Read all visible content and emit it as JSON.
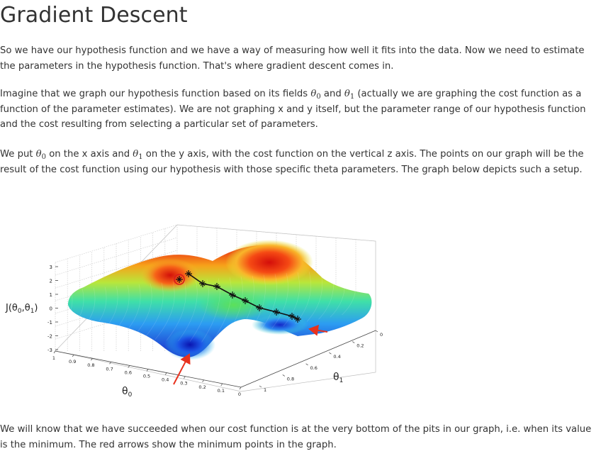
{
  "page": {
    "title": "Gradient Descent",
    "p1": "So we have our hypothesis function and we have a way of measuring how well it fits into the data. Now we need to estimate the parameters in the hypothesis function. That's where gradient descent comes in.",
    "p2_a": "Imagine that we graph our hypothesis function based on its fields ",
    "p2_b": " and ",
    "p2_c": " (actually we are graphing the cost function as a function of the parameter estimates). We are not graphing x and y itself, but the parameter range of our hypothesis function and the cost resulting from selecting a particular set of parameters.",
    "p3_a": "We put ",
    "p3_b": " on the x axis and ",
    "p3_c": " on the y axis, with the cost function on the vertical z axis. The points on our graph will be the result of the cost function using our hypothesis with those specific theta parameters. The graph below depicts such a setup.",
    "p4": "We will know that we have succeeded when our cost function is at the very bottom of the pits in our graph, i.e. when its value is the minimum. The red arrows show the minimum points in the graph.",
    "theta": "θ",
    "sub0": "0",
    "sub1": "1"
  },
  "figure": {
    "z_label": "J(θ0,θ1)",
    "z_label_parts": [
      "J(θ",
      "0",
      ",θ",
      "1",
      ")"
    ],
    "x_label": "θ0",
    "y_label": "θ1",
    "z_ticks": [
      "3",
      "2",
      "1",
      "0",
      "-1",
      "-2",
      "-3"
    ],
    "x_ticks": [
      "1",
      "0.9",
      "0.8",
      "0.7",
      "0.6",
      "0.5",
      "0.4",
      "0.3",
      "0.2",
      "0.1",
      "0"
    ],
    "y_ticks": [
      "0",
      "0.2",
      "0.4",
      "0.6",
      "0.8",
      "1"
    ],
    "colors": {
      "path": "#111111",
      "arrow": "#e8321e",
      "circle": "#d81c1c",
      "grid": "#cfcfcf"
    }
  }
}
